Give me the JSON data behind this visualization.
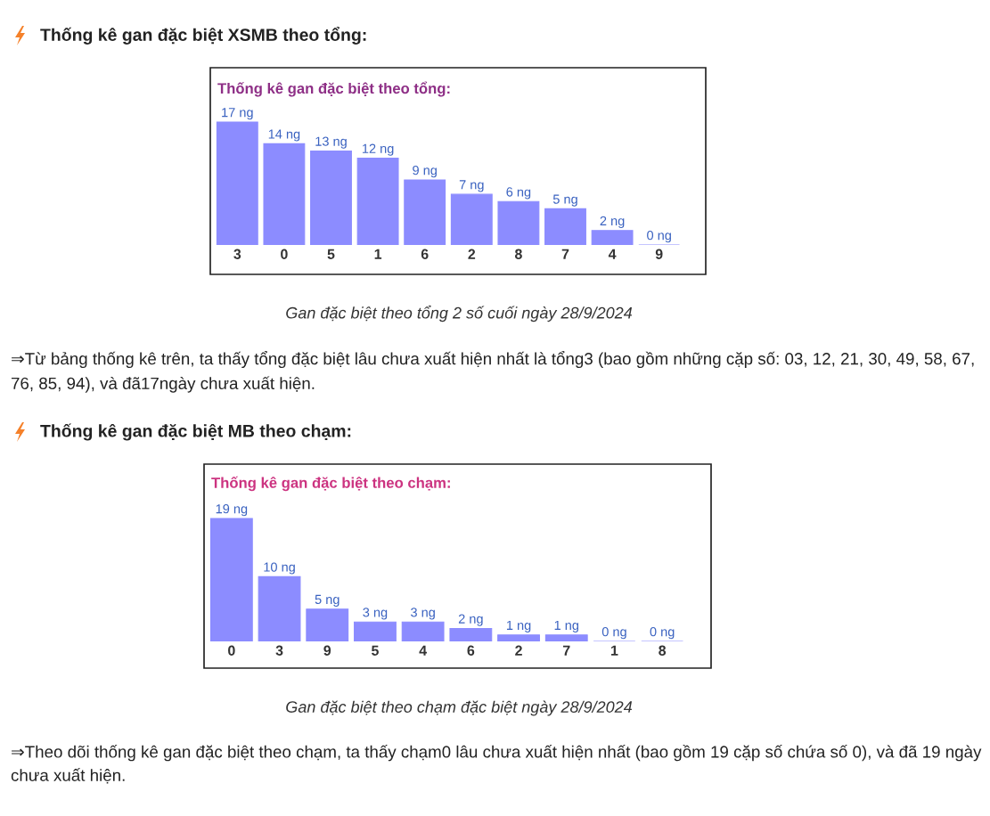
{
  "chart_data": [
    {
      "type": "bar",
      "title": "Thống kê gan đặc biệt theo tổng:",
      "categories": [
        "3",
        "0",
        "5",
        "1",
        "6",
        "2",
        "8",
        "7",
        "4",
        "9"
      ],
      "values": [
        17,
        14,
        13,
        12,
        9,
        7,
        6,
        5,
        2,
        0
      ],
      "value_labels": [
        "17 ng",
        "14 ng",
        "13 ng",
        "12 ng",
        "9 ng",
        "7 ng",
        "6 ng",
        "5 ng",
        "2 ng",
        "0 ng"
      ],
      "color": "#8c8cff",
      "annotations": [
        "Thống kê gan đặc biệt XSMB theo tổng:",
        "Gan đặc biệt theo tổng 2 số cuối ngày 28/9/2024",
        "⇒Từ bảng thống kê trên, ta thấy tổng đặc biệt lâu chưa xuất hiện nhất là tổng3 (bao gồm những cặp số: 03, 12, 21, 30, 49, 58, 67, 76, 85, 94), và đã17ngày chưa xuất hiện."
      ]
    },
    {
      "type": "bar",
      "title": "Thống kê gan đặc biệt theo chạm:",
      "categories": [
        "0",
        "3",
        "9",
        "5",
        "4",
        "6",
        "2",
        "7",
        "1",
        "8"
      ],
      "values": [
        19,
        10,
        5,
        3,
        3,
        2,
        1,
        1,
        0,
        0
      ],
      "value_labels": [
        "19 ng",
        "10 ng",
        "5 ng",
        "3 ng",
        "3 ng",
        "2 ng",
        "1 ng",
        "1 ng",
        "0 ng",
        "0 ng"
      ],
      "color": "#8c8cff",
      "annotations": [
        "Thống kê gan đặc biệt MB theo chạm:",
        "Gan đặc biệt theo chạm đặc biệt ngày 28/9/2024",
        "⇒Theo dõi thống kê gan đặc biệt theo chạm, ta thấy chạm0 lâu chưa xuất hiện nhất (bao gồm 19 cặp số chứa số 0), và đã 19 ngày chưa xuất hiện."
      ]
    }
  ]
}
